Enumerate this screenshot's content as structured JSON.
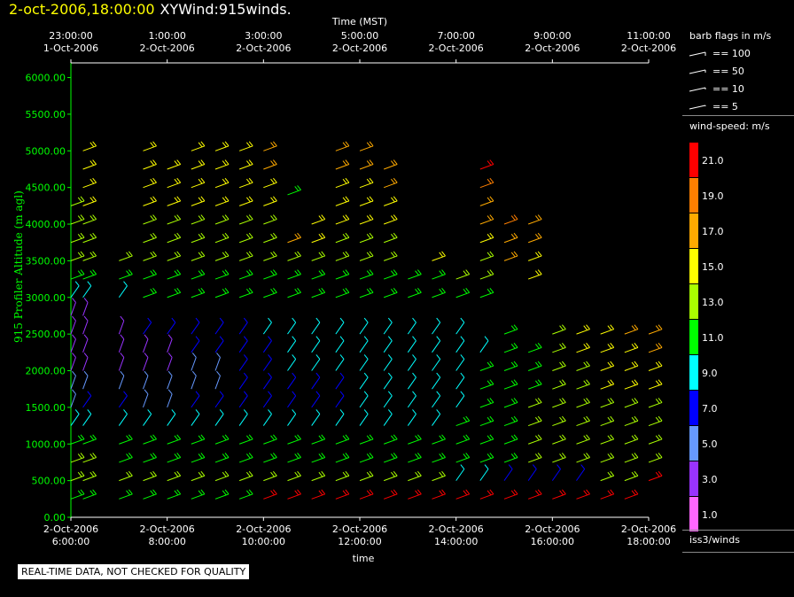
{
  "header": {
    "date_time": "2-oct-2006,18:00:00",
    "product": "XYWind:915winds."
  },
  "legend": {
    "barb_title": "barb flags in m/s",
    "barb_items": [
      "== 100",
      "== 50",
      "== 10",
      "== 5"
    ],
    "speed_title": "wind-speed: m/s",
    "speed_bins": [
      {
        "label": "21.0",
        "color": "#ff0000"
      },
      {
        "label": "19.0",
        "color": "#ff7f00"
      },
      {
        "label": "17.0",
        "color": "#ffaa00"
      },
      {
        "label": "15.0",
        "color": "#ffff00"
      },
      {
        "label": "13.0",
        "color": "#aaff00"
      },
      {
        "label": "11.0",
        "color": "#00ff00"
      },
      {
        "label": "9.0",
        "color": "#00ffff"
      },
      {
        "label": "7.0",
        "color": "#0000ff"
      },
      {
        "label": "5.0",
        "color": "#6699ff"
      },
      {
        "label": "3.0",
        "color": "#9933ff"
      },
      {
        "label": "1.0",
        "color": "#ff66ff"
      }
    ],
    "source": "iss3/winds"
  },
  "notice": "REAL-TIME DATA, NOT CHECKED FOR QUALITY",
  "chart_data": {
    "type": "scatter",
    "title": "2-oct-2006,18:00:00 XYWind:915winds.",
    "ylabel": "915 Profiler Altitude (m agl)",
    "xlabel": "time",
    "top_axis_label": "Time (MST)",
    "ylim": [
      0,
      6200
    ],
    "yticks": [
      "0.00",
      "500.00",
      "1000.00",
      "1500.00",
      "2000.00",
      "2500.00",
      "3000.00",
      "3500.00",
      "4000.00",
      "4500.00",
      "5000.00",
      "5500.00",
      "6000.00"
    ],
    "bottom_ticks": [
      {
        "date": "2-Oct-2006",
        "time": "6:00:00"
      },
      {
        "date": "2-Oct-2006",
        "time": "8:00:00"
      },
      {
        "date": "2-Oct-2006",
        "time": "10:00:00"
      },
      {
        "date": "2-Oct-2006",
        "time": "12:00:00"
      },
      {
        "date": "2-Oct-2006",
        "time": "14:00:00"
      },
      {
        "date": "2-Oct-2006",
        "time": "16:00:00"
      },
      {
        "date": "2-Oct-2006",
        "time": "18:00:00"
      }
    ],
    "top_ticks": [
      {
        "time": "23:00:00",
        "date": "1-Oct-2006"
      },
      {
        "time": "1:00:00",
        "date": "2-Oct-2006"
      },
      {
        "time": "3:00:00",
        "date": "2-Oct-2006"
      },
      {
        "time": "5:00:00",
        "date": "2-Oct-2006"
      },
      {
        "time": "7:00:00",
        "date": "2-Oct-2006"
      },
      {
        "time": "9:00:00",
        "date": "2-Oct-2006"
      },
      {
        "time": "11:00:00",
        "date": "2-Oct-2006"
      }
    ],
    "series": [
      {
        "x": "6:00",
        "levels_m": [
          250,
          500,
          750,
          1000,
          1250,
          1500,
          1750,
          2000,
          2250,
          2500,
          2750,
          3000,
          3250,
          3500,
          3750,
          4000,
          4250
        ],
        "speeds_ms": [
          11,
          12,
          12,
          11,
          8,
          5,
          4,
          3,
          3,
          3,
          2,
          9,
          11,
          12,
          13,
          13,
          13
        ]
      },
      {
        "x": "6:15",
        "levels_m": [
          250,
          500,
          750,
          1000,
          1250,
          1500,
          1750,
          2000,
          2250,
          2500,
          2750,
          3000,
          3250,
          3500,
          3750,
          4000,
          4250,
          4500,
          4750,
          5000
        ],
        "speeds_ms": [
          11,
          12,
          12,
          11,
          9,
          6,
          4,
          3,
          3,
          3,
          2,
          9,
          11,
          12,
          13,
          13,
          14,
          14,
          15,
          15
        ]
      },
      {
        "x": "7:00",
        "levels_m": [
          250,
          500,
          750,
          1000,
          1250,
          1500,
          1750,
          2000,
          2250,
          2500,
          3000,
          3250,
          3500
        ],
        "speeds_ms": [
          11,
          12,
          11,
          11,
          9,
          6,
          4,
          3,
          3,
          3,
          9,
          11,
          12
        ]
      },
      {
        "x": "7:30",
        "levels_m": [
          250,
          500,
          750,
          1000,
          1250,
          1500,
          1750,
          2000,
          2250,
          2500,
          3000,
          3250,
          3500,
          3750,
          4000,
          4250,
          4500,
          4750,
          5000
        ],
        "speeds_ms": [
          10,
          12,
          11,
          10,
          8,
          5,
          4,
          3,
          3,
          6,
          10,
          11,
          12,
          13,
          13,
          14,
          14,
          15,
          15
        ]
      },
      {
        "x": "8:00",
        "levels_m": [
          250,
          500,
          750,
          1000,
          1250,
          1500,
          1750,
          2000,
          2250,
          2500,
          3000,
          3250,
          3500,
          3750,
          4000,
          4250,
          4500,
          4750
        ],
        "speeds_ms": [
          10,
          12,
          11,
          10,
          8,
          5,
          4,
          3,
          3,
          6,
          10,
          11,
          12,
          13,
          13,
          14,
          14,
          15
        ]
      },
      {
        "x": "8:30",
        "levels_m": [
          250,
          500,
          750,
          1000,
          1250,
          1500,
          1750,
          2000,
          2250,
          2500,
          3000,
          3250,
          3500,
          3750,
          4000,
          4250,
          4500,
          4750,
          5000
        ],
        "speeds_ms": [
          10,
          12,
          11,
          10,
          8,
          6,
          5,
          4,
          6,
          7,
          10,
          11,
          12,
          13,
          13,
          14,
          14,
          15,
          15
        ]
      },
      {
        "x": "9:00",
        "levels_m": [
          250,
          500,
          750,
          1000,
          1250,
          1500,
          1750,
          2000,
          2250,
          2500,
          3000,
          3250,
          3500,
          3750,
          4000,
          4250,
          4500,
          4750,
          5000
        ],
        "speeds_ms": [
          10,
          12,
          11,
          10,
          8,
          6,
          5,
          5,
          6,
          7,
          10,
          11,
          12,
          13,
          13,
          14,
          14,
          15,
          15
        ]
      },
      {
        "x": "9:30",
        "levels_m": [
          250,
          500,
          750,
          1000,
          1250,
          1500,
          1750,
          2000,
          2250,
          2500,
          3000,
          3250,
          3500,
          3750,
          4000,
          4250,
          4500,
          4750,
          5000
        ],
        "speeds_ms": [
          10,
          12,
          11,
          10,
          8,
          7,
          6,
          6,
          7,
          7,
          10,
          11,
          12,
          13,
          13,
          14,
          14,
          15,
          15
        ]
      },
      {
        "x": "10:00",
        "levels_m": [
          250,
          500,
          750,
          1000,
          1250,
          1500,
          1750,
          2000,
          2250,
          2500,
          3000,
          3250,
          3500,
          3750,
          4000,
          4250,
          4500,
          4750,
          5000
        ],
        "speeds_ms": [
          21,
          12,
          11,
          10,
          8,
          7,
          7,
          7,
          7,
          8,
          10,
          11,
          12,
          13,
          13,
          14,
          15,
          16,
          17
        ]
      },
      {
        "x": "10:30",
        "levels_m": [
          250,
          500,
          750,
          1000,
          1250,
          1500,
          1750,
          2000,
          2250,
          2500,
          3000,
          3250,
          3500,
          3750,
          4400
        ],
        "speeds_ms": [
          21,
          12,
          11,
          10,
          8,
          7,
          7,
          8,
          8,
          9,
          10,
          11,
          12,
          17,
          11
        ]
      },
      {
        "x": "11:00",
        "levels_m": [
          250,
          500,
          750,
          1000,
          1250,
          1500,
          1750,
          2000,
          2250,
          2500,
          3000,
          3250,
          3500,
          3750,
          4000
        ],
        "speeds_ms": [
          21,
          12,
          11,
          10,
          8,
          7,
          7,
          8,
          8,
          9,
          10,
          11,
          12,
          15,
          14
        ]
      },
      {
        "x": "11:30",
        "levels_m": [
          250,
          500,
          750,
          1000,
          1250,
          1500,
          1750,
          2000,
          2250,
          2500,
          3000,
          3250,
          3500,
          3750,
          4000,
          4250,
          4500,
          4750,
          5000
        ],
        "speeds_ms": [
          21,
          12,
          11,
          10,
          8,
          7,
          7,
          8,
          9,
          9,
          10,
          11,
          12,
          13,
          14,
          14,
          15,
          16,
          17
        ]
      },
      {
        "x": "12:00",
        "levels_m": [
          250,
          500,
          750,
          1000,
          1250,
          1500,
          1750,
          2000,
          2250,
          2500,
          3000,
          3250,
          3500,
          3750,
          4000,
          4250,
          4500,
          4750,
          5000
        ],
        "speeds_ms": [
          21,
          12,
          11,
          10,
          9,
          8,
          8,
          8,
          9,
          9,
          10,
          11,
          12,
          13,
          14,
          14,
          15,
          16,
          17
        ]
      },
      {
        "x": "12:30",
        "levels_m": [
          250,
          500,
          750,
          1000,
          1250,
          1500,
          1750,
          2000,
          2250,
          2500,
          3000,
          3250,
          3500,
          3750,
          4000,
          4250,
          4500,
          4750
        ],
        "speeds_ms": [
          21,
          12,
          11,
          10,
          9,
          8,
          8,
          9,
          9,
          9,
          10,
          11,
          12,
          13,
          14,
          15,
          16,
          17
        ]
      },
      {
        "x": "13:00",
        "levels_m": [
          250,
          500,
          750,
          1000,
          1250,
          1500,
          1750,
          2000,
          2250,
          2500,
          3000,
          3250
        ],
        "speeds_ms": [
          21,
          12,
          11,
          10,
          9,
          8,
          9,
          9,
          9,
          9,
          10,
          11
        ]
      },
      {
        "x": "13:30",
        "levels_m": [
          250,
          500,
          750,
          1000,
          1250,
          1500,
          1750,
          2000,
          2250,
          2500,
          3000,
          3250,
          3500
        ],
        "speeds_ms": [
          21,
          12,
          11,
          10,
          9,
          9,
          9,
          9,
          9,
          9,
          10,
          11,
          15
        ]
      },
      {
        "x": "14:00",
        "levels_m": [
          250,
          500,
          750,
          1000,
          1250,
          1500,
          1750,
          2000,
          2250,
          2500,
          3000,
          3250
        ],
        "speeds_ms": [
          21,
          8,
          11,
          10,
          10,
          9,
          9,
          9,
          9,
          9,
          11,
          12
        ]
      },
      {
        "x": "14:30",
        "levels_m": [
          250,
          500,
          750,
          1000,
          1250,
          1500,
          1750,
          2000,
          2250,
          3000,
          3250,
          3500,
          3750,
          4000,
          4250,
          4500,
          4750
        ],
        "speeds_ms": [
          21,
          8,
          11,
          11,
          11,
          10,
          10,
          10,
          9,
          11,
          12,
          13,
          14,
          16,
          17,
          19,
          21
        ]
      },
      {
        "x": "15:00",
        "levels_m": [
          250,
          500,
          750,
          1000,
          1250,
          1500,
          1750,
          2000,
          2250,
          2500,
          3500,
          3750,
          4000
        ],
        "speeds_ms": [
          21,
          7,
          11,
          11,
          11,
          11,
          10,
          10,
          10,
          11,
          17,
          17,
          18
        ]
      },
      {
        "x": "15:30",
        "levels_m": [
          250,
          500,
          750,
          1000,
          1250,
          1500,
          1750,
          2000,
          2250,
          3250,
          3500,
          3750,
          4000
        ],
        "speeds_ms": [
          21,
          7,
          12,
          12,
          12,
          12,
          11,
          11,
          11,
          15,
          15,
          16,
          17
        ]
      },
      {
        "x": "16:00",
        "levels_m": [
          250,
          500,
          750,
          1000,
          1250,
          1500,
          1750,
          2000,
          2250,
          2500
        ],
        "speeds_ms": [
          21,
          7,
          12,
          12,
          12,
          12,
          12,
          12,
          13,
          13
        ]
      },
      {
        "x": "16:30",
        "levels_m": [
          250,
          500,
          750,
          1000,
          1250,
          1500,
          1750,
          2000,
          2250,
          2500
        ],
        "speeds_ms": [
          21,
          7,
          12,
          12,
          12,
          13,
          13,
          13,
          14,
          14
        ]
      },
      {
        "x": "17:00",
        "levels_m": [
          250,
          500,
          750,
          1000,
          1250,
          1500,
          1750,
          2000,
          2250,
          2500
        ],
        "speeds_ms": [
          21,
          12,
          12,
          12,
          13,
          13,
          14,
          14,
          15,
          15
        ]
      },
      {
        "x": "17:30",
        "levels_m": [
          250,
          500,
          750,
          1000,
          1250,
          1500,
          1750,
          2000,
          2250,
          2500
        ],
        "speeds_ms": [
          21,
          12,
          12,
          12,
          13,
          13,
          14,
          15,
          15,
          16
        ]
      },
      {
        "x": "18:00",
        "levels_m": [
          500,
          750,
          1000,
          1250,
          1500,
          1750,
          2000,
          2250,
          2500
        ],
        "speeds_ms": [
          21,
          12,
          12,
          13,
          13,
          14,
          15,
          16,
          17
        ]
      }
    ]
  }
}
